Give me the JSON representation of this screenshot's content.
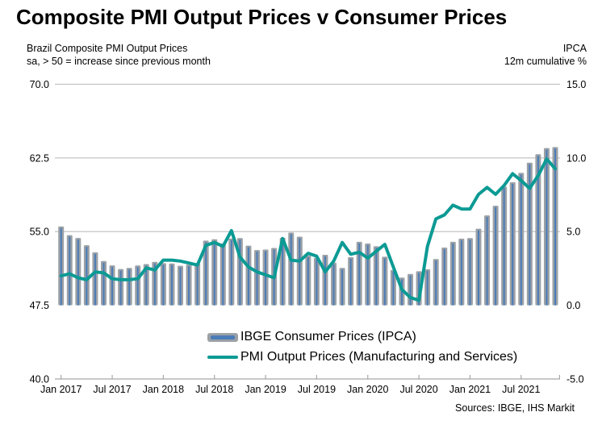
{
  "title": "Composite PMI Output Prices v Consumer Prices",
  "subtitle_left": {
    "line1": "Brazil Composite PMI Output Prices",
    "line2": "sa, > 50 = increase since previous month"
  },
  "subtitle_right": {
    "line1": "IPCA",
    "line2": "12m cumulative %"
  },
  "sources": "Sources: IBGE, IHS Markit",
  "legend": {
    "bar_label": "IBGE Consumer Prices (IPCA)",
    "line_label": "PMI Output Prices (Manufacturing and Services)"
  },
  "colors": {
    "bar_fill": "#9CA1A6",
    "bar_stripe": "#4A7CB8",
    "line": "#0C9A94",
    "gridline": "#C4C4C4",
    "axis": "#A6A6A6",
    "text": "#000000"
  },
  "chart_data": {
    "type": "combo-bar-line",
    "title": "Composite PMI Output Prices v Consumer Prices",
    "x_start": "Jan 2017",
    "x_end": "Nov 2021",
    "x_interval": "monthly",
    "n_points": 59,
    "x_tick_labels": [
      "Jan 2017",
      "Jul 2017",
      "Jan 2018",
      "Jul 2018",
      "Jan 2019",
      "Jul 2019",
      "Jan 2020",
      "Jul 2020",
      "Jan 2021",
      "Jul 2021"
    ],
    "left_axis": {
      "label_line1": "Brazil Composite PMI Output Prices",
      "label_line2": "sa, > 50 = increase since previous month",
      "min": 40.0,
      "max": 70.0,
      "ticks": [
        70.0,
        62.5,
        55.0,
        47.5,
        40.0
      ]
    },
    "right_axis": {
      "label_line1": "IPCA",
      "label_line2": "12m cumulative %",
      "min": -5.0,
      "max": 15.0,
      "ticks": [
        15.0,
        10.0,
        5.0,
        0.0,
        -5.0
      ]
    },
    "gridlines_left_values": [
      70.0,
      62.5,
      55.0
    ],
    "series": [
      {
        "name": "IBGE Consumer Prices (IPCA)",
        "type": "bar",
        "axis": "right",
        "values": [
          5.35,
          4.76,
          4.57,
          4.08,
          3.6,
          3.0,
          2.71,
          2.46,
          2.54,
          2.7,
          2.8,
          2.95,
          2.86,
          2.84,
          2.68,
          2.76,
          2.86,
          4.39,
          4.48,
          4.19,
          4.53,
          4.56,
          4.05,
          3.75,
          3.78,
          3.89,
          4.58,
          4.94,
          4.66,
          3.37,
          3.22,
          3.43,
          2.89,
          2.54,
          3.27,
          4.31,
          4.19,
          4.01,
          3.3,
          2.4,
          1.88,
          2.13,
          2.31,
          2.44,
          3.14,
          3.92,
          4.31,
          4.52,
          4.56,
          5.2,
          6.1,
          6.76,
          8.06,
          8.35,
          8.99,
          9.68,
          10.25,
          10.67,
          10.74
        ]
      },
      {
        "name": "PMI Output Prices (Manufacturing and Services)",
        "type": "line",
        "axis": "left",
        "values": [
          50.5,
          50.7,
          50.3,
          50.1,
          50.9,
          50.8,
          50.2,
          50.1,
          50.1,
          50.2,
          51.3,
          51.1,
          52.1,
          52.1,
          52.0,
          51.8,
          51.6,
          53.6,
          53.9,
          53.5,
          55.1,
          52.4,
          51.4,
          50.9,
          50.6,
          50.3,
          54.3,
          52.1,
          52.0,
          52.8,
          52.5,
          50.9,
          52.0,
          53.9,
          52.7,
          52.9,
          52.3,
          53.0,
          53.7,
          51.4,
          49.1,
          48.3,
          48.0,
          53.5,
          56.3,
          56.7,
          57.7,
          57.3,
          57.3,
          58.8,
          59.5,
          58.8,
          59.7,
          60.9,
          60.2,
          59.4,
          60.7,
          62.4,
          61.4
        ]
      }
    ]
  }
}
